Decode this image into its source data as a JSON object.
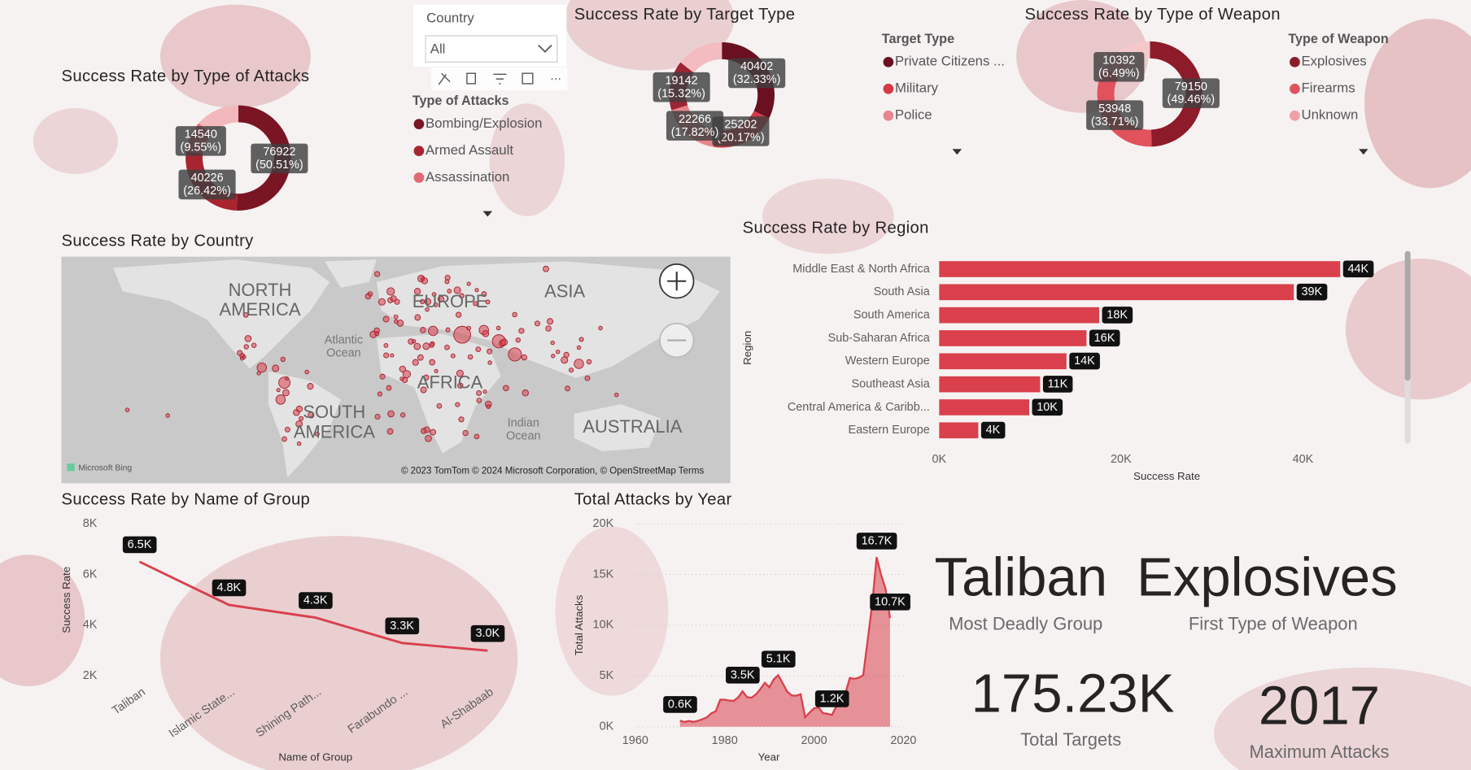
{
  "slicer": {
    "title": "Country",
    "value": "All"
  },
  "chart_data": [
    {
      "type": "donut",
      "title": "Success Rate by Type of Attacks",
      "legend_title": "Type of Attacks",
      "categories": [
        "Bombing/Explosion",
        "Armed Assault",
        "Assassination",
        null
      ],
      "values": [
        76922,
        40226,
        14540,
        20590
      ],
      "value_labels": [
        "76922\n(50.51%)",
        "40226\n(26.42%)",
        "14540\n(9.55%)",
        null
      ],
      "colors": [
        "#7a1524",
        "#a8252f",
        "#e06a73",
        "#f2b8bc"
      ]
    },
    {
      "type": "donut",
      "title": "Success Rate by Target Type",
      "legend_title": "Target Type",
      "categories": [
        "Private Citizens ...",
        "Military",
        "Police",
        null,
        null
      ],
      "values": [
        40402,
        25202,
        22266,
        19142,
        17945
      ],
      "value_labels": [
        "40402\n(32.33%)",
        "25202\n(20.17%)",
        "22266\n(17.82%)",
        "19142\n(15.32%)",
        null
      ],
      "colors": [
        "#6b1020",
        "#d43a46",
        "#e8858c",
        "#9c2532",
        "#f2bcc0"
      ]
    },
    {
      "type": "donut",
      "title": "Success Rate by Type of Weapon",
      "legend_title": "Type of Weapon",
      "categories": [
        "Explosives",
        "Firearms",
        "Unknown",
        null
      ],
      "values": [
        79150,
        53948,
        10392,
        16547
      ],
      "value_labels": [
        "79150\n(49.46%)",
        "53948\n(33.71%)",
        "10392\n(6.49%)",
        null
      ],
      "colors": [
        "#8e1b2a",
        "#e0525c",
        "#eea0a5",
        "#f5c9cc"
      ]
    },
    {
      "type": "map",
      "title": "Success Rate by Country",
      "labels": [
        "NORTH\nAMERICA",
        "EUROPE",
        "ASIA",
        "Atlantic\nOcean",
        "AFRICA",
        "SOUTH\nAMERICA",
        "Indian\nOcean",
        "AUSTRALIA"
      ],
      "provider": "Microsoft Bing",
      "attribution": "© 2023 TomTom © 2024 Microsoft Corporation, © OpenStreetMap  Terms"
    },
    {
      "type": "hbar",
      "title": "Success Rate by Region",
      "x_label": "Success Rate",
      "y_label": "Region",
      "categories": [
        "Middle East & North Africa",
        "South Asia",
        "South America",
        "Sub-Saharan Africa",
        "Western Europe",
        "Southeast Asia",
        "Central America & Caribb...",
        "Eastern Europe"
      ],
      "values": [
        44100,
        39000,
        17600,
        16200,
        14000,
        11100,
        9900,
        4300
      ],
      "value_labels": [
        "44K",
        "39K",
        "18K",
        "16K",
        "14K",
        "11K",
        "10K",
        "4K"
      ],
      "color": "#d9404c",
      "xlim": [
        0,
        48000
      ],
      "xticks": [
        {
          "value": 0,
          "label": "0K"
        },
        {
          "value": 20000,
          "label": "20K"
        },
        {
          "value": 40000,
          "label": "40K"
        }
      ]
    },
    {
      "type": "line",
      "title": "Success Rate by Name of Group",
      "x_label": "Name of Group",
      "y_label": "Success Rate",
      "categories": [
        "Taliban",
        "Islamic State...",
        "Shining Path...",
        "Farabundo ...",
        "Al-Shabaab"
      ],
      "values": [
        6500,
        4800,
        4300,
        3300,
        3000
      ],
      "value_labels": [
        "6.5K",
        "4.8K",
        "4.3K",
        "3.3K",
        "3.0K"
      ],
      "color": "#d9404c",
      "ylim": [
        0,
        8000
      ],
      "yticks": [
        {
          "value": 2000,
          "label": "2K"
        },
        {
          "value": 4000,
          "label": "4K"
        },
        {
          "value": 6000,
          "label": "6K"
        },
        {
          "value": 8000,
          "label": "8K"
        }
      ]
    },
    {
      "type": "area",
      "title": "Total Attacks by Year",
      "x_label": "Year",
      "y_label": "Total Attacks",
      "x": [
        1970,
        1971,
        1972,
        1973,
        1974,
        1975,
        1976,
        1977,
        1978,
        1979,
        1980,
        1981,
        1982,
        1983,
        1984,
        1985,
        1986,
        1987,
        1988,
        1989,
        1990,
        1991,
        1992,
        1994,
        1995,
        1996,
        1997,
        1998,
        1999,
        2000,
        2001,
        2002,
        2003,
        2004,
        2005,
        2006,
        2007,
        2008,
        2009,
        2010,
        2011,
        2012,
        2013,
        2014,
        2015,
        2016,
        2017
      ],
      "values": [
        600,
        471,
        568,
        473,
        581,
        740,
        923,
        1319,
        1526,
        2662,
        2662,
        2586,
        2544,
        2870,
        3495,
        2915,
        2860,
        3183,
        3721,
        4324,
        3887,
        4683,
        5071,
        3456,
        3081,
        3058,
        3197,
        934,
        1395,
        1814,
        1906,
        1333,
        1278,
        1166,
        2017,
        2758,
        3242,
        4805,
        4721,
        4826,
        5076,
        8522,
        12036,
        16700,
        14965,
        13587,
        10700
      ],
      "value_labels": [
        "0.6K",
        null,
        null,
        null,
        null,
        null,
        null,
        null,
        null,
        null,
        null,
        null,
        null,
        null,
        "3.5K",
        null,
        null,
        null,
        null,
        null,
        null,
        null,
        "5.1K",
        null,
        null,
        null,
        null,
        null,
        null,
        null,
        null,
        null,
        null,
        "1.2K",
        null,
        null,
        null,
        null,
        null,
        null,
        null,
        null,
        null,
        "16.7K",
        null,
        null,
        "10.7K"
      ],
      "color": "#d9404c",
      "xlim": [
        1960,
        2020
      ],
      "xticks": [
        1960,
        1980,
        2000,
        2020
      ],
      "ylim": [
        0,
        20000
      ],
      "yticks": [
        {
          "value": 0,
          "label": "0K"
        },
        {
          "value": 5000,
          "label": "5K"
        },
        {
          "value": 10000,
          "label": "10K"
        },
        {
          "value": 15000,
          "label": "15K"
        },
        {
          "value": 20000,
          "label": "20K"
        }
      ]
    }
  ],
  "cards": [
    {
      "value": "Taliban",
      "label": "Most Deadly Group"
    },
    {
      "value": "Explosives",
      "label": "First Type of Weapon"
    },
    {
      "value": "175.23K",
      "label": "Total Targets"
    },
    {
      "value": "2017",
      "label": "Maximum Attacks"
    }
  ]
}
